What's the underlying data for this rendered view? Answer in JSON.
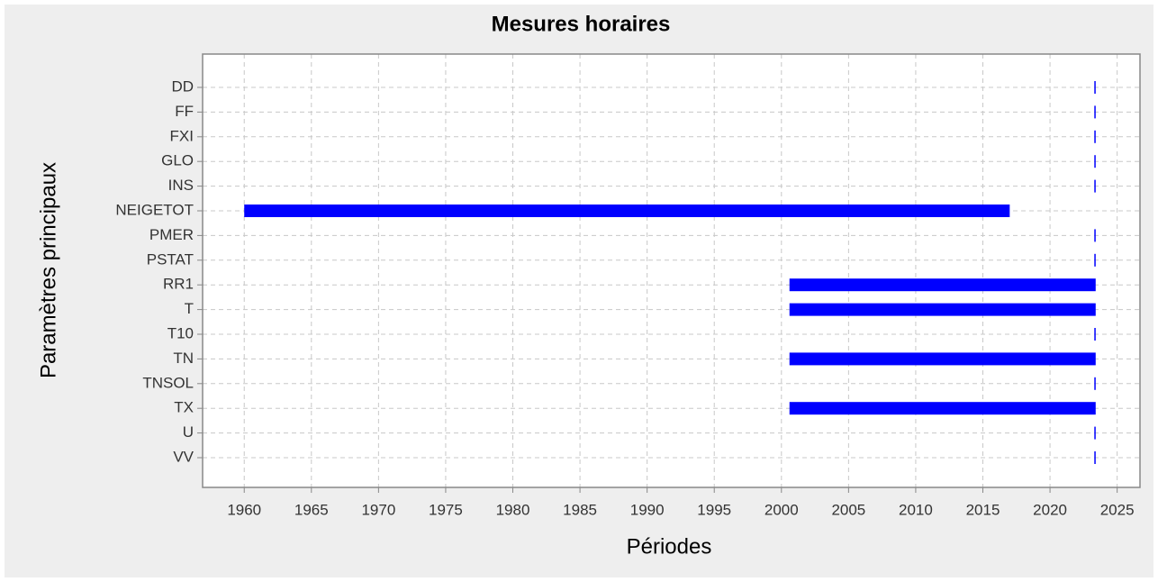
{
  "chart_data": {
    "type": "rangebar",
    "title": "Mesures horaires",
    "x_label": "Périodes",
    "y_label": "Paramètres principaux",
    "categories": [
      "DD",
      "FF",
      "FXI",
      "GLO",
      "INS",
      "NEIGETOT",
      "PMER",
      "PSTAT",
      "RR1",
      "T",
      "T10",
      "TN",
      "TNSOL",
      "TX",
      "U",
      "VV"
    ],
    "start": [
      2023.3,
      2023.3,
      2023.3,
      2023.3,
      2023.3,
      1960.0,
      2023.3,
      2023.3,
      2000.6,
      2000.6,
      2023.3,
      2000.6,
      2023.3,
      2000.6,
      2023.3,
      2023.3
    ],
    "end": [
      2023.4,
      2023.4,
      2023.4,
      2023.4,
      2023.4,
      2017.0,
      2023.4,
      2023.4,
      2023.4,
      2023.4,
      2023.4,
      2023.4,
      2023.4,
      2023.4,
      2023.4,
      2023.4
    ],
    "color": "#0000ff",
    "xlim": [
      1956.9,
      2026.7
    ],
    "xticks": [
      1960,
      1965,
      1970,
      1975,
      1980,
      1985,
      1990,
      1995,
      2000,
      2005,
      2010,
      2015,
      2020,
      2025
    ],
    "grid": true
  }
}
